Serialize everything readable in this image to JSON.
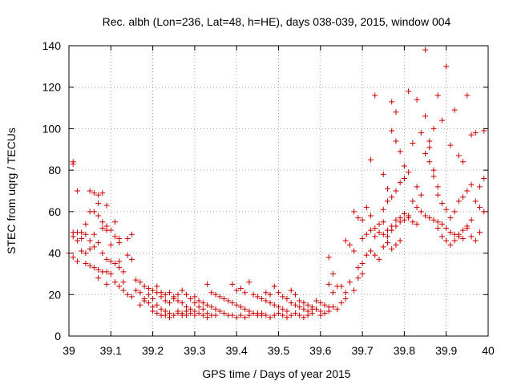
{
  "chart_data": {
    "type": "scatter",
    "title": "Rec. albh (Lon=236, Lat=48, h=HE), days 038-039, 2015, window 004",
    "xlabel": "GPS time / Days of year 2015",
    "ylabel": "STEC from uqrg / TECUs",
    "xlim": [
      39,
      40
    ],
    "ylim": [
      0,
      140
    ],
    "x_ticks": [
      39,
      39.1,
      39.2,
      39.3,
      39.4,
      39.5,
      39.6,
      39.7,
      39.8,
      39.9,
      40
    ],
    "x_tick_labels": [
      "39",
      "39.1",
      "39.2",
      "39.3",
      "39.4",
      "39.5",
      "39.6",
      "39.7",
      "39.8",
      "39.9",
      "40"
    ],
    "y_ticks": [
      0,
      20,
      40,
      60,
      80,
      100,
      120,
      140
    ],
    "y_tick_labels": [
      "0",
      "20",
      "40",
      "60",
      "80",
      "100",
      "120",
      "140"
    ],
    "grid": true,
    "marker": "plus",
    "color": "#cc0000",
    "points": [
      [
        39.01,
        84
      ],
      [
        39.01,
        83
      ],
      [
        39.02,
        70
      ],
      [
        39.05,
        70
      ],
      [
        39.06,
        69
      ],
      [
        39.07,
        68
      ],
      [
        39.08,
        69
      ],
      [
        39.07,
        64
      ],
      [
        39.09,
        63
      ],
      [
        39.05,
        60
      ],
      [
        39.06,
        60
      ],
      [
        39.07,
        58
      ],
      [
        39.08,
        55
      ],
      [
        39.09,
        53
      ],
      [
        39.11,
        55
      ],
      [
        39.04,
        54
      ],
      [
        39.08,
        52
      ],
      [
        39.09,
        51
      ],
      [
        39.1,
        51
      ],
      [
        39.01,
        50
      ],
      [
        39.02,
        50
      ],
      [
        39.03,
        50
      ],
      [
        39.04,
        49
      ],
      [
        39.06,
        49
      ],
      [
        39.11,
        48
      ],
      [
        39.12,
        47
      ],
      [
        39.14,
        47
      ],
      [
        39.15,
        49
      ],
      [
        39.01,
        48
      ],
      [
        39.02,
        46
      ],
      [
        39.03,
        47
      ],
      [
        39.05,
        46
      ],
      [
        39.07,
        45
      ],
      [
        39.1,
        44
      ],
      [
        39.12,
        45
      ],
      [
        39.05,
        42
      ],
      [
        39.06,
        43
      ],
      [
        39.03,
        41
      ],
      [
        39.04,
        40
      ],
      [
        39.01,
        38
      ],
      [
        39.0,
        40
      ],
      [
        39.02,
        36
      ],
      [
        39.04,
        35
      ],
      [
        39.05,
        34
      ],
      [
        39.06,
        33
      ],
      [
        39.07,
        32
      ],
      [
        39.08,
        31
      ],
      [
        39.09,
        31
      ],
      [
        39.1,
        30
      ],
      [
        39.08,
        40
      ],
      [
        39.09,
        37
      ],
      [
        39.1,
        36
      ],
      [
        39.11,
        35
      ],
      [
        39.12,
        36
      ],
      [
        39.12,
        33
      ],
      [
        39.13,
        31
      ],
      [
        39.14,
        39
      ],
      [
        39.15,
        37
      ],
      [
        39.07,
        28
      ],
      [
        39.09,
        25
      ],
      [
        39.11,
        26
      ],
      [
        39.12,
        24
      ],
      [
        39.13,
        22
      ],
      [
        39.14,
        20
      ],
      [
        39.15,
        19
      ],
      [
        39.16,
        27
      ],
      [
        39.17,
        26
      ],
      [
        39.18,
        24
      ],
      [
        39.19,
        23
      ],
      [
        39.2,
        22
      ],
      [
        39.13,
        26
      ],
      [
        39.16,
        22
      ],
      [
        39.17,
        21
      ],
      [
        39.18,
        17
      ],
      [
        39.19,
        16
      ],
      [
        39.2,
        14
      ],
      [
        39.21,
        15
      ],
      [
        39.22,
        13
      ],
      [
        39.23,
        12
      ],
      [
        39.24,
        11
      ],
      [
        39.25,
        10
      ],
      [
        39.26,
        11
      ],
      [
        39.27,
        10
      ],
      [
        39.28,
        10
      ],
      [
        39.17,
        15
      ],
      [
        39.18,
        18
      ],
      [
        39.19,
        20
      ],
      [
        39.2,
        18
      ],
      [
        39.21,
        21
      ],
      [
        39.22,
        19
      ],
      [
        39.23,
        17
      ],
      [
        39.24,
        16
      ],
      [
        39.25,
        19
      ],
      [
        39.26,
        17
      ],
      [
        39.27,
        16
      ],
      [
        39.28,
        14
      ],
      [
        39.29,
        13
      ],
      [
        39.3,
        12
      ],
      [
        39.21,
        24
      ],
      [
        39.22,
        21
      ],
      [
        39.23,
        20
      ],
      [
        39.24,
        21
      ],
      [
        39.25,
        18
      ],
      [
        39.26,
        20
      ],
      [
        39.27,
        22
      ],
      [
        39.28,
        20
      ],
      [
        39.29,
        18
      ],
      [
        39.3,
        16
      ],
      [
        39.31,
        14
      ],
      [
        39.32,
        13
      ],
      [
        39.33,
        11
      ],
      [
        39.34,
        10
      ],
      [
        39.2,
        12
      ],
      [
        39.21,
        11
      ],
      [
        39.22,
        10
      ],
      [
        39.23,
        10
      ],
      [
        39.24,
        9
      ],
      [
        39.26,
        12
      ],
      [
        39.27,
        11
      ],
      [
        39.28,
        12
      ],
      [
        39.29,
        11
      ],
      [
        39.3,
        10
      ],
      [
        39.31,
        11
      ],
      [
        39.32,
        10
      ],
      [
        39.33,
        9
      ],
      [
        39.35,
        10
      ],
      [
        39.3,
        19
      ],
      [
        39.31,
        17
      ],
      [
        39.32,
        16
      ],
      [
        39.33,
        15
      ],
      [
        39.34,
        14
      ],
      [
        39.35,
        13
      ],
      [
        39.36,
        12
      ],
      [
        39.37,
        11
      ],
      [
        39.38,
        10
      ],
      [
        39.39,
        10
      ],
      [
        39.4,
        9
      ],
      [
        39.41,
        10
      ],
      [
        39.42,
        9
      ],
      [
        39.43,
        10
      ],
      [
        39.33,
        25
      ],
      [
        39.34,
        21
      ],
      [
        39.35,
        20
      ],
      [
        39.36,
        19
      ],
      [
        39.37,
        18
      ],
      [
        39.38,
        17
      ],
      [
        39.39,
        16
      ],
      [
        39.4,
        15
      ],
      [
        39.41,
        14
      ],
      [
        39.42,
        13
      ],
      [
        39.43,
        12
      ],
      [
        39.44,
        11
      ],
      [
        39.45,
        11
      ],
      [
        39.46,
        10
      ],
      [
        39.39,
        25
      ],
      [
        39.4,
        22
      ],
      [
        39.41,
        23
      ],
      [
        39.42,
        21
      ],
      [
        39.43,
        26
      ],
      [
        39.44,
        20
      ],
      [
        39.45,
        19
      ],
      [
        39.46,
        18
      ],
      [
        39.47,
        17
      ],
      [
        39.48,
        16
      ],
      [
        39.49,
        15
      ],
      [
        39.5,
        14
      ],
      [
        39.51,
        13
      ],
      [
        39.52,
        12
      ],
      [
        39.45,
        10
      ],
      [
        39.46,
        11
      ],
      [
        39.47,
        10
      ],
      [
        39.48,
        9
      ],
      [
        39.49,
        10
      ],
      [
        39.5,
        11
      ],
      [
        39.51,
        10
      ],
      [
        39.52,
        9
      ],
      [
        39.53,
        10
      ],
      [
        39.54,
        11
      ],
      [
        39.55,
        10
      ],
      [
        39.56,
        9
      ],
      [
        39.57,
        10
      ],
      [
        39.58,
        11
      ],
      [
        39.47,
        21
      ],
      [
        39.48,
        20
      ],
      [
        39.49,
        24
      ],
      [
        39.5,
        21
      ],
      [
        39.51,
        19
      ],
      [
        39.52,
        18
      ],
      [
        39.53,
        22
      ],
      [
        39.54,
        20
      ],
      [
        39.55,
        17
      ],
      [
        39.56,
        16
      ],
      [
        39.57,
        15
      ],
      [
        39.58,
        14
      ],
      [
        39.59,
        13
      ],
      [
        39.6,
        12
      ],
      [
        39.53,
        16
      ],
      [
        39.54,
        15
      ],
      [
        39.55,
        14
      ],
      [
        39.56,
        13
      ],
      [
        39.57,
        12
      ],
      [
        39.58,
        13
      ],
      [
        39.59,
        17
      ],
      [
        39.6,
        16
      ],
      [
        39.61,
        15
      ],
      [
        39.62,
        14
      ],
      [
        39.63,
        14
      ],
      [
        39.64,
        13
      ],
      [
        39.65,
        16
      ],
      [
        39.66,
        18
      ],
      [
        39.6,
        10
      ],
      [
        39.61,
        11
      ],
      [
        39.62,
        12
      ],
      [
        39.63,
        21
      ],
      [
        39.62,
        25
      ],
      [
        39.63,
        30
      ],
      [
        39.64,
        24
      ],
      [
        39.65,
        24
      ],
      [
        39.66,
        21
      ],
      [
        39.67,
        26
      ],
      [
        39.68,
        22
      ],
      [
        39.69,
        28
      ],
      [
        39.7,
        30
      ],
      [
        39.62,
        38
      ],
      [
        39.66,
        46
      ],
      [
        39.67,
        44
      ],
      [
        39.68,
        41
      ],
      [
        39.69,
        33
      ],
      [
        39.7,
        35
      ],
      [
        39.71,
        39
      ],
      [
        39.72,
        41
      ],
      [
        39.73,
        39
      ],
      [
        39.74,
        37
      ],
      [
        39.75,
        43
      ],
      [
        39.76,
        45
      ],
      [
        39.77,
        42
      ],
      [
        39.78,
        44
      ],
      [
        39.79,
        46
      ],
      [
        39.68,
        60
      ],
      [
        39.69,
        57
      ],
      [
        39.7,
        56
      ],
      [
        39.71,
        62
      ],
      [
        39.72,
        58
      ],
      [
        39.73,
        52
      ],
      [
        39.74,
        54
      ],
      [
        39.75,
        55
      ],
      [
        39.76,
        51
      ],
      [
        39.77,
        53
      ],
      [
        39.78,
        56
      ],
      [
        39.79,
        57
      ],
      [
        39.8,
        59
      ],
      [
        39.81,
        57
      ],
      [
        39.7,
        47
      ],
      [
        39.71,
        49
      ],
      [
        39.72,
        51
      ],
      [
        39.73,
        48
      ],
      [
        39.74,
        50
      ],
      [
        39.75,
        49
      ],
      [
        39.76,
        48
      ],
      [
        39.77,
        51
      ],
      [
        39.78,
        53
      ],
      [
        39.79,
        55
      ],
      [
        39.8,
        56
      ],
      [
        39.81,
        58
      ],
      [
        39.82,
        55
      ],
      [
        39.83,
        54
      ],
      [
        39.72,
        85
      ],
      [
        39.73,
        116
      ],
      [
        39.75,
        78
      ],
      [
        39.76,
        71
      ],
      [
        39.77,
        113
      ],
      [
        39.78,
        108
      ],
      [
        39.77,
        99
      ],
      [
        39.78,
        94
      ],
      [
        39.79,
        89
      ],
      [
        39.8,
        82
      ],
      [
        39.81,
        118
      ],
      [
        39.82,
        93
      ],
      [
        39.83,
        114
      ],
      [
        39.84,
        98
      ],
      [
        39.75,
        61
      ],
      [
        39.76,
        65
      ],
      [
        39.77,
        67
      ],
      [
        39.78,
        70
      ],
      [
        39.79,
        74
      ],
      [
        39.8,
        76
      ],
      [
        39.81,
        79
      ],
      [
        39.82,
        65
      ],
      [
        39.83,
        72
      ],
      [
        39.84,
        68
      ],
      [
        39.85,
        88
      ],
      [
        39.86,
        94
      ],
      [
        39.87,
        100
      ],
      [
        39.88,
        116
      ],
      [
        39.83,
        62
      ],
      [
        39.84,
        60
      ],
      [
        39.85,
        58
      ],
      [
        39.86,
        57
      ],
      [
        39.87,
        56
      ],
      [
        39.88,
        55
      ],
      [
        39.89,
        54
      ],
      [
        39.9,
        52
      ],
      [
        39.91,
        50
      ],
      [
        39.92,
        49
      ],
      [
        39.93,
        48
      ],
      [
        39.94,
        47
      ],
      [
        39.95,
        52
      ],
      [
        39.96,
        56
      ],
      [
        39.85,
        138
      ],
      [
        39.85,
        106
      ],
      [
        39.86,
        91
      ],
      [
        39.87,
        77
      ],
      [
        39.88,
        72
      ],
      [
        39.89,
        104
      ],
      [
        39.9,
        130
      ],
      [
        39.91,
        92
      ],
      [
        39.92,
        109
      ],
      [
        39.93,
        87
      ],
      [
        39.94,
        84
      ],
      [
        39.95,
        116
      ],
      [
        39.96,
        97
      ],
      [
        39.97,
        98
      ],
      [
        39.86,
        84
      ],
      [
        39.87,
        80
      ],
      [
        39.88,
        68
      ],
      [
        39.89,
        64
      ],
      [
        39.9,
        61
      ],
      [
        39.91,
        57
      ],
      [
        39.92,
        60
      ],
      [
        39.93,
        65
      ],
      [
        39.94,
        67
      ],
      [
        39.95,
        70
      ],
      [
        39.96,
        73
      ],
      [
        39.97,
        65
      ],
      [
        39.98,
        62
      ],
      [
        39.99,
        60
      ],
      [
        39.88,
        52
      ],
      [
        39.89,
        48
      ],
      [
        39.9,
        46
      ],
      [
        39.91,
        44
      ],
      [
        39.92,
        46
      ],
      [
        39.93,
        49
      ],
      [
        39.94,
        51
      ],
      [
        39.95,
        53
      ],
      [
        39.96,
        48
      ],
      [
        39.97,
        46
      ],
      [
        39.98,
        50
      ],
      [
        39.99,
        99
      ],
      [
        39.99,
        76
      ],
      [
        39.98,
        72
      ]
    ]
  }
}
